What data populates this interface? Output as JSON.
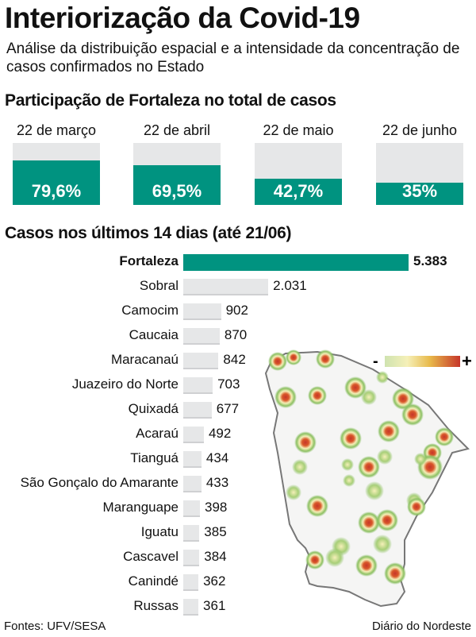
{
  "header": {
    "title": "Interiorização da Covid-19",
    "subtitle": "Análise da distribuição espacial e a intensidade da concentração de casos confirmados no Estado"
  },
  "chart_data": [
    {
      "type": "bar",
      "title": "Participação de Fortaleza no total de casos",
      "categories": [
        "22 de março",
        "22 de abril",
        "22 de maio",
        "22 de junho"
      ],
      "values": [
        79.6,
        69.5,
        42.7,
        35
      ],
      "labels": [
        "79,6%",
        "69,5%",
        "42,7%",
        "35%"
      ],
      "ylim": [
        0,
        100
      ],
      "colors": {
        "fill": "#009380",
        "track": "#e6e7e8"
      }
    },
    {
      "type": "bar",
      "orientation": "horizontal",
      "title": "Casos nos últimos 14 dias (até 21/06)",
      "categories": [
        "Fortaleza",
        "Sobral",
        "Camocim",
        "Caucaia",
        "Maracanaú",
        "Juazeiro do Norte",
        "Quixadá",
        "Acaraú",
        "Tianguá",
        "São Gonçalo do Amarante",
        "Maranguape",
        "Iguatu",
        "Cascavel",
        "Canindé",
        "Russas"
      ],
      "values": [
        5383,
        2031,
        902,
        870,
        842,
        703,
        677,
        492,
        434,
        433,
        398,
        385,
        384,
        362,
        361
      ],
      "labels": [
        "5.383",
        "2.031",
        "902",
        "870",
        "842",
        "703",
        "677",
        "492",
        "434",
        "433",
        "398",
        "385",
        "384",
        "362",
        "361"
      ],
      "highlight": "Fortaleza",
      "colors": {
        "highlight": "#009380",
        "other": "#e6e7e8"
      }
    }
  ],
  "map": {
    "legend_min": "-",
    "legend_max": "+",
    "gradient": [
      "#cfe3b0",
      "#f5f0b8",
      "#e8b94a",
      "#d9582a",
      "#c6362a"
    ]
  },
  "footer": {
    "source": "Fontes: UFV/SESA",
    "brand": "Diário do Nordeste"
  }
}
